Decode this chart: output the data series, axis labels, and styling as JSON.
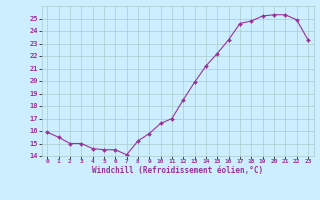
{
  "x": [
    0,
    1,
    2,
    3,
    4,
    5,
    6,
    7,
    8,
    9,
    10,
    11,
    12,
    13,
    14,
    15,
    16,
    17,
    18,
    19,
    20,
    21,
    22,
    23
  ],
  "y": [
    15.9,
    15.5,
    15.0,
    15.0,
    14.6,
    14.5,
    14.5,
    14.1,
    15.2,
    15.8,
    16.6,
    17.0,
    18.5,
    19.9,
    21.2,
    22.2,
    23.3,
    24.6,
    24.8,
    25.2,
    25.3,
    25.3,
    24.9,
    23.3
  ],
  "line_color": "#993399",
  "marker_color": "#993399",
  "bg_color": "#cceeff",
  "grid_color": "#aacccc",
  "text_color": "#993399",
  "xlabel": "Windchill (Refroidissement éolien,°C)",
  "ylim": [
    14,
    26
  ],
  "xlim": [
    -0.5,
    23.5
  ],
  "yticks": [
    14,
    15,
    16,
    17,
    18,
    19,
    20,
    21,
    22,
    23,
    24,
    25
  ],
  "xticks": [
    0,
    1,
    2,
    3,
    4,
    5,
    6,
    7,
    8,
    9,
    10,
    11,
    12,
    13,
    14,
    15,
    16,
    17,
    18,
    19,
    20,
    21,
    22,
    23
  ],
  "xlabels": [
    "0",
    "1",
    "2",
    "3",
    "4",
    "5",
    "6",
    "7",
    "8",
    "9",
    "10",
    "11",
    "12",
    "13",
    "14",
    "15",
    "16",
    "17",
    "18",
    "19",
    "20",
    "21",
    "22",
    "23"
  ]
}
